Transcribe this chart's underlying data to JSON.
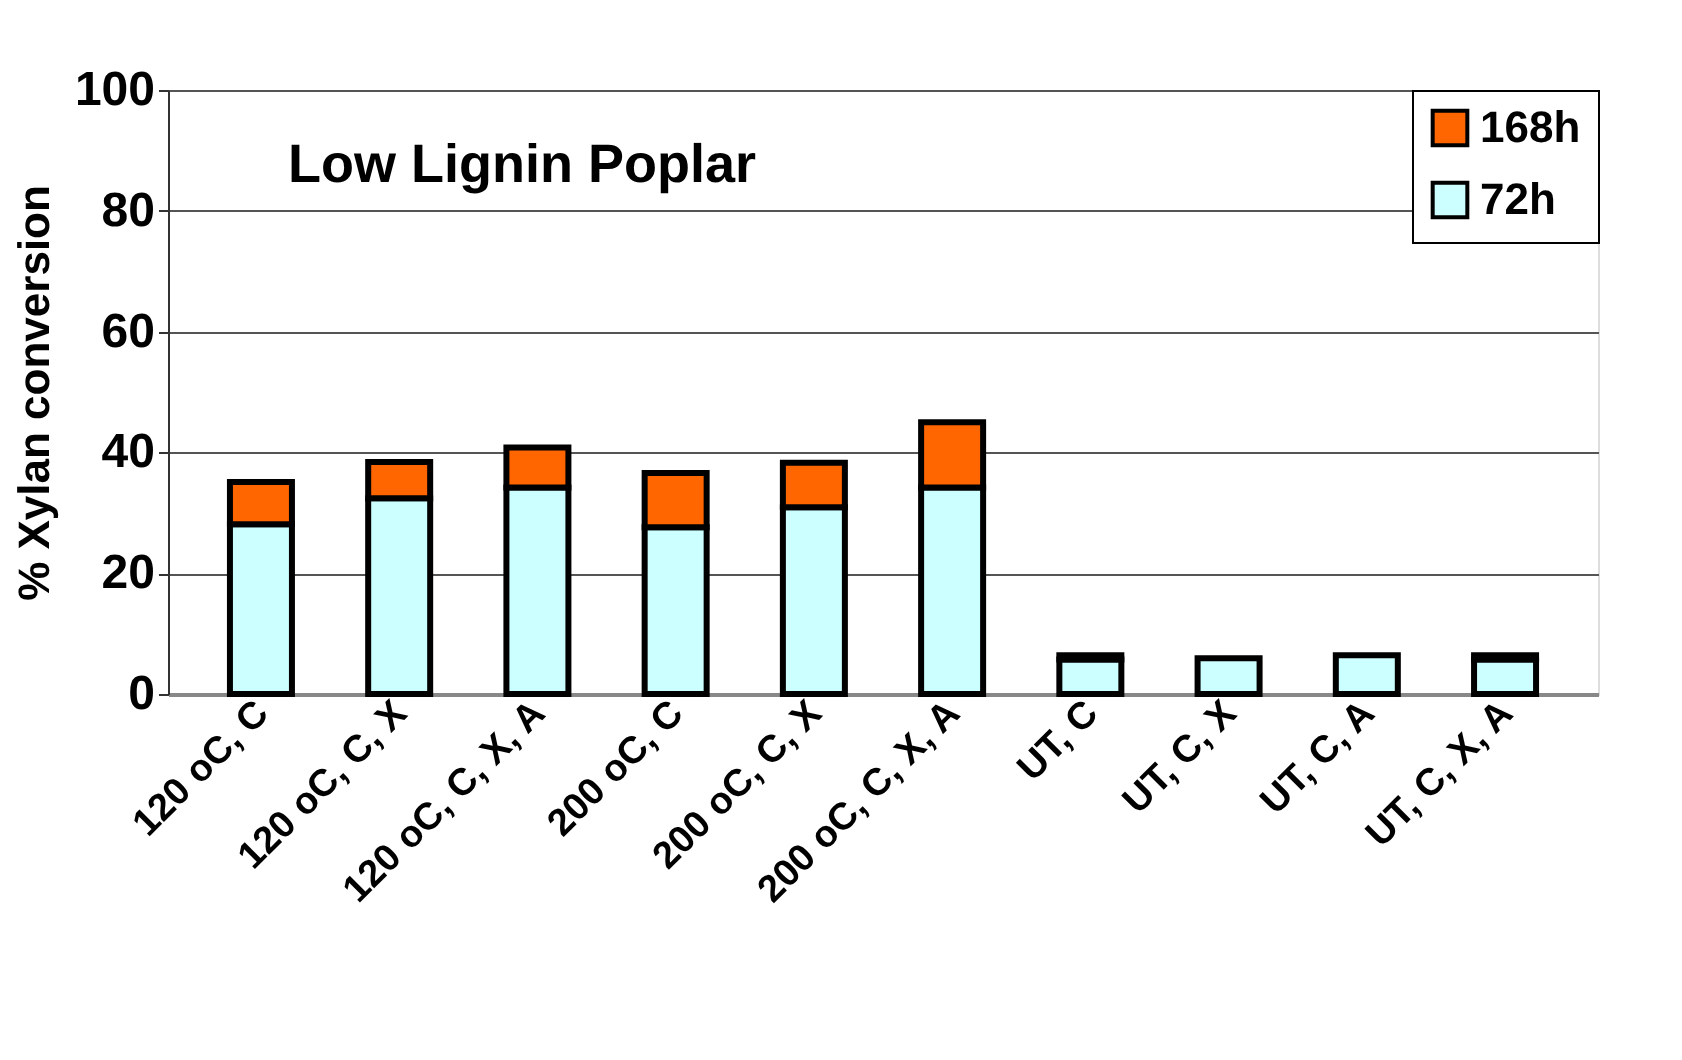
{
  "chart_data": {
    "type": "bar",
    "stacked": true,
    "ylabel": "% Xylan conversion",
    "annotations": [
      "Low Lignin Poplar"
    ],
    "categories": [
      "120 oC, C",
      "120 oC, C, X",
      "120 oC, C, X, A",
      "200 oC, C",
      "200 oC, C, X",
      "200 oC, C, X, A",
      "UT, C",
      "UT, C, X",
      "UT, C, A",
      "UT, C, X, A"
    ],
    "series": [
      {
        "name": "72h",
        "color": "#ccffff",
        "values": [
          28.1,
          32.4,
          34.2,
          27.6,
          30.9,
          34.2,
          5.7,
          5.9,
          6.4,
          5.7
        ]
      },
      {
        "name": "168h",
        "color": "#ff6600",
        "values": [
          7,
          6,
          6.6,
          9,
          7.4,
          10.8,
          0.7,
          null,
          null,
          0.7
        ]
      }
    ],
    "ylim": [
      0,
      100
    ],
    "yticks": [
      0,
      20,
      40,
      60,
      80,
      100
    ],
    "grid": "y",
    "legend": "top right"
  }
}
